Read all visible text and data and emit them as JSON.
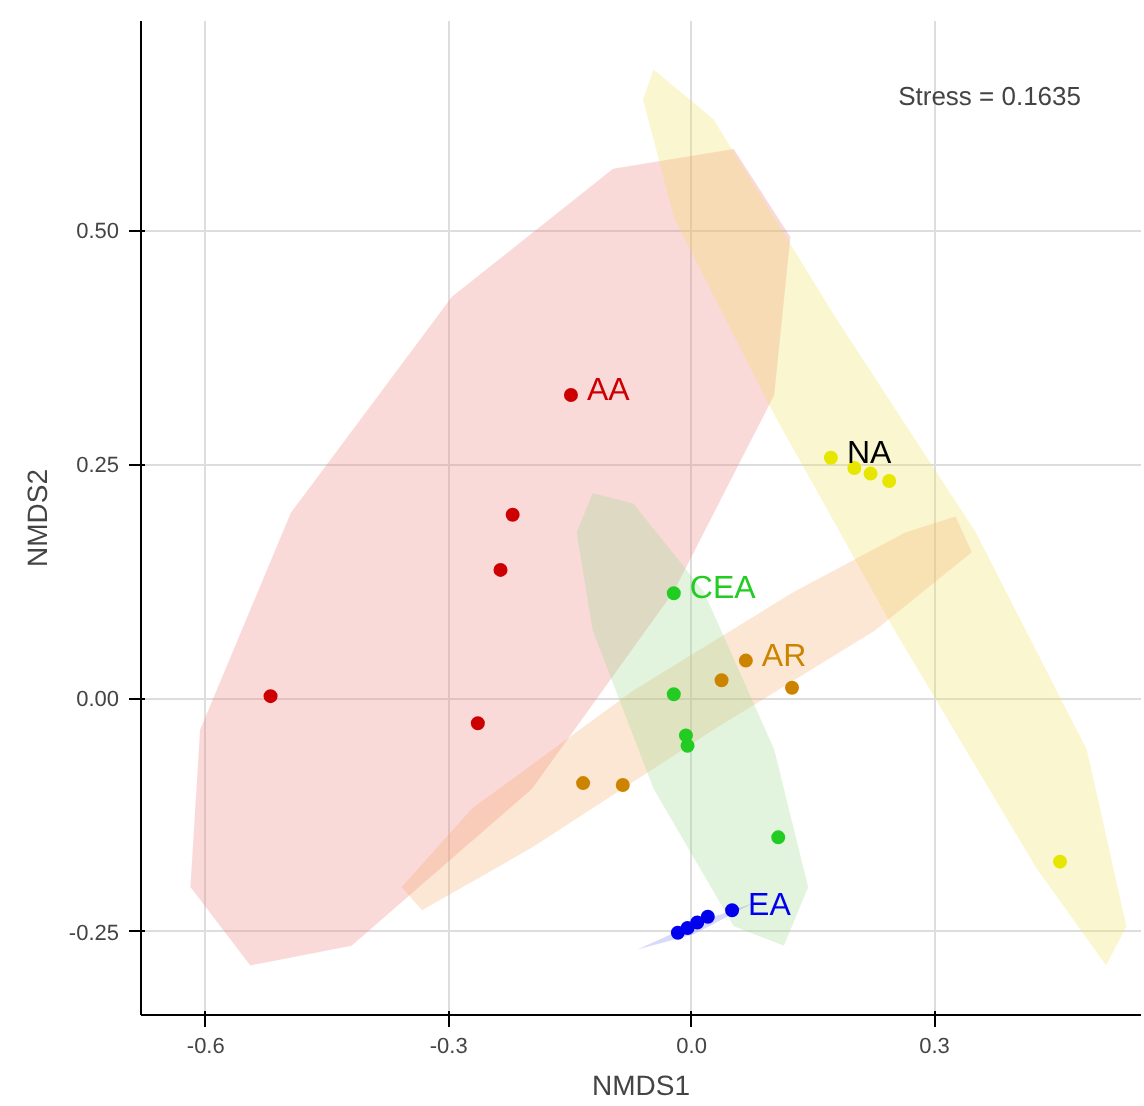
{
  "chart_data": {
    "type": "scatter",
    "xlabel": "NMDS1",
    "ylabel": "NMDS2",
    "xlim": [
      -0.68,
      0.555
    ],
    "ylim": [
      -0.339,
      0.724
    ],
    "xticks": [
      {
        "value": -0.6,
        "label": "-0.6"
      },
      {
        "value": -0.3,
        "label": "-0.3"
      },
      {
        "value": 0,
        "label": "0.0"
      },
      {
        "value": 0.3,
        "label": "0.3"
      }
    ],
    "yticks": [
      {
        "value": -0.25,
        "label": "-0.25"
      },
      {
        "value": 0,
        "label": "0.00"
      },
      {
        "value": 0.25,
        "label": "0.25"
      },
      {
        "value": 0.5,
        "label": "0.50"
      }
    ],
    "grid": true,
    "legend": false,
    "series": [
      {
        "type": "area",
        "color": "#f08080",
        "x": [
          0.052,
          0.122,
          0.102,
          -0.022,
          -0.197,
          -0.42,
          -0.545,
          -0.619,
          -0.607,
          -0.495,
          -0.296,
          -0.097
        ],
        "values": [
          0.587,
          0.493,
          0.324,
          0.114,
          -0.097,
          -0.265,
          -0.286,
          -0.202,
          -0.034,
          0.198,
          0.429,
          0.566
        ]
      },
      {
        "type": "area",
        "color": "#f0e060",
        "x": [
          -0.047,
          0.027,
          0.177,
          0.351,
          0.488,
          0.537,
          0.512,
          0.425,
          0.251,
          0.102,
          -0.022,
          -0.06
        ],
        "values": [
          0.672,
          0.619,
          0.408,
          0.177,
          -0.055,
          -0.244,
          -0.286,
          -0.181,
          0.072,
          0.303,
          0.514,
          0.64
        ]
      },
      {
        "type": "area",
        "color": "#f5b070",
        "x": [
          0.326,
          0.346,
          0.226,
          0.027,
          -0.197,
          -0.333,
          -0.358,
          -0.271,
          -0.072,
          0.127,
          0.264
        ],
        "values": [
          0.194,
          0.156,
          0.072,
          -0.034,
          -0.16,
          -0.227,
          -0.202,
          -0.118,
          0.008,
          0.114,
          0.177
        ]
      },
      {
        "type": "area",
        "color": "#a0dc90",
        "x": [
          -0.122,
          -0.072,
          0.015,
          0.102,
          0.144,
          0.114,
          0.052,
          -0.047,
          -0.122,
          -0.142
        ],
        "values": [
          0.219,
          0.208,
          0.114,
          -0.055,
          -0.202,
          -0.265,
          -0.244,
          -0.097,
          0.072,
          0.177
        ]
      },
      {
        "type": "area",
        "color": "#8080f0",
        "x": [
          -0.067,
          0.002,
          0.077,
          0.007
        ],
        "values": [
          -0.269,
          -0.253,
          -0.219,
          -0.24
        ]
      },
      {
        "name": "AA",
        "marker": "circle",
        "color": "#cc0000",
        "x": [
          -0.52,
          -0.264,
          -0.236,
          -0.221,
          -0.149
        ],
        "values": [
          0.002,
          -0.027,
          0.137,
          0.196,
          0.324
        ]
      },
      {
        "name": "NA",
        "marker": "circle",
        "color": "#e6e600",
        "x": [
          0.172,
          0.201,
          0.221,
          0.244,
          0.455
        ],
        "values": [
          0.257,
          0.246,
          0.24,
          0.232,
          -0.175
        ]
      },
      {
        "name": "AR",
        "marker": "circle",
        "color": "#cc8400",
        "x": [
          -0.134,
          -0.085,
          0.037,
          0.067,
          0.124
        ],
        "values": [
          -0.091,
          -0.093,
          0.019,
          0.04,
          0.011
        ]
      },
      {
        "name": "CEA",
        "marker": "circle",
        "color": "#22cc22",
        "x": [
          -0.022,
          -0.022,
          -0.007,
          -0.005,
          0.107
        ],
        "values": [
          0.112,
          0.004,
          -0.04,
          -0.051,
          -0.149
        ]
      },
      {
        "name": "EA",
        "marker": "circle",
        "color": "#0000ee",
        "x": [
          -0.017,
          -0.005,
          0.007,
          0.02,
          0.05
        ],
        "values": [
          -0.251,
          -0.246,
          -0.24,
          -0.234,
          -0.227
        ]
      }
    ],
    "annotations": [
      "Stress = 0.1635"
    ]
  }
}
